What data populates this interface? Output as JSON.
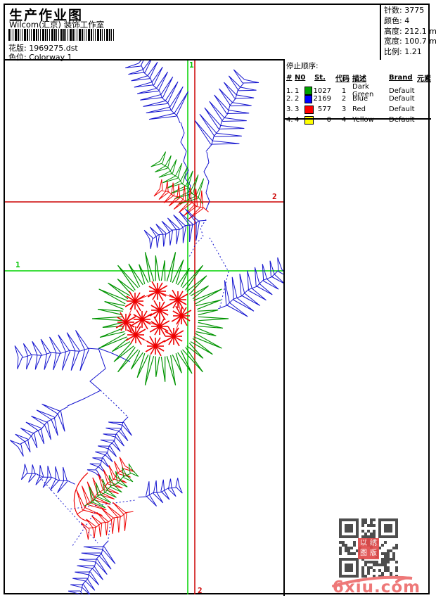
{
  "header": {
    "title": "生产作业图",
    "studio": "Wilcom(汇京) 装饰工作室",
    "pattern_label": "花版:",
    "pattern_value": "1969275.dst",
    "colorway_label": "色位:",
    "colorway_value": "Colorway 1"
  },
  "stats": {
    "stitches_label": "针数:",
    "stitches_value": "3775",
    "colors_label": "颜色:",
    "colors_value": "4",
    "height_label": "高度:",
    "height_value": "212.1 mm",
    "width_label": "宽度:",
    "width_value": "100.7 mm",
    "scale_label": "比例:",
    "scale_value": "1.21"
  },
  "stop_sequence": {
    "title": "停止顺序:",
    "headers": {
      "num": "#",
      "n0": "N0",
      "st": "St.",
      "code": "代码",
      "desc": "描述",
      "brand": "Brand",
      "element": "元素"
    },
    "rows": [
      {
        "seq": "1.",
        "needle": "1",
        "swatch": "#00a000",
        "stitches": "1027",
        "code": "1",
        "description": "Dark Green",
        "brand": "Default"
      },
      {
        "seq": "2.",
        "needle": "2",
        "swatch": "#0000ff",
        "stitches": "2169",
        "code": "2",
        "description": "Blue",
        "brand": "Default"
      },
      {
        "seq": "3.",
        "needle": "3",
        "swatch": "#ff0000",
        "stitches": "577",
        "code": "3",
        "description": "Red",
        "brand": "Default"
      },
      {
        "seq": "4.",
        "needle": "4",
        "swatch": "#ffff00",
        "stitches": "0",
        "code": "4",
        "description": "Yellow",
        "brand": "Default"
      }
    ]
  },
  "canvas": {
    "markers": {
      "start": "1",
      "end": "2"
    },
    "colors": {
      "blue": "#1414cf",
      "green": "#009400",
      "red": "#ee0000",
      "guide_green": "#00d400",
      "guide_red": "#cc0000"
    }
  },
  "footer": {
    "watermark": "6xiu.com",
    "stamp": "以绣图版",
    "qr_color": "#4d4d4d"
  }
}
